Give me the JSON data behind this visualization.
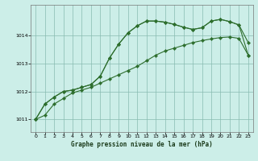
{
  "title": "Graphe pression niveau de la mer (hPa)",
  "bg_color": "#cceee8",
  "grid_color": "#88bbb0",
  "line_color": "#2d6e2d",
  "xlim": [
    -0.5,
    23.5
  ],
  "ylim": [
    1010.55,
    1015.1
  ],
  "yticks": [
    1011,
    1012,
    1013,
    1014
  ],
  "xticks": [
    0,
    1,
    2,
    3,
    4,
    5,
    6,
    7,
    8,
    9,
    10,
    11,
    12,
    13,
    14,
    15,
    16,
    17,
    18,
    19,
    20,
    21,
    22,
    23
  ],
  "line1_x": [
    0,
    1,
    2,
    3,
    4,
    5,
    6,
    7,
    8,
    9,
    10,
    11,
    12,
    13,
    14,
    15,
    16,
    17,
    18,
    19,
    20,
    21,
    22,
    23
  ],
  "line1_y": [
    1011.0,
    1011.15,
    1011.55,
    1011.75,
    1011.95,
    1012.05,
    1012.15,
    1012.3,
    1012.45,
    1012.6,
    1012.75,
    1012.9,
    1013.1,
    1013.3,
    1013.45,
    1013.55,
    1013.65,
    1013.75,
    1013.82,
    1013.88,
    1013.93,
    1013.95,
    1013.9,
    1013.3
  ],
  "line2_x": [
    0,
    1,
    2,
    3,
    4,
    5,
    6,
    7,
    8,
    9,
    10,
    11,
    12,
    13,
    14,
    15,
    16,
    17,
    18,
    19,
    20,
    21,
    22,
    23
  ],
  "line2_y": [
    1011.0,
    1011.55,
    1011.8,
    1012.0,
    1012.05,
    1012.15,
    1012.25,
    1012.55,
    1013.2,
    1013.7,
    1014.1,
    1014.35,
    1014.52,
    1014.52,
    1014.48,
    1014.4,
    1014.3,
    1014.22,
    1014.28,
    1014.52,
    1014.58,
    1014.5,
    1014.38,
    1013.3
  ],
  "line3_x": [
    0,
    1,
    2,
    3,
    4,
    5,
    6,
    7,
    8,
    9,
    10,
    11,
    12,
    13,
    14,
    15,
    16,
    17,
    18,
    19,
    20,
    21,
    22,
    23
  ],
  "line3_y": [
    1011.0,
    1011.55,
    1011.8,
    1012.0,
    1012.05,
    1012.15,
    1012.25,
    1012.55,
    1013.2,
    1013.7,
    1014.1,
    1014.35,
    1014.52,
    1014.52,
    1014.48,
    1014.4,
    1014.3,
    1014.22,
    1014.28,
    1014.52,
    1014.58,
    1014.5,
    1014.38,
    1013.75
  ]
}
